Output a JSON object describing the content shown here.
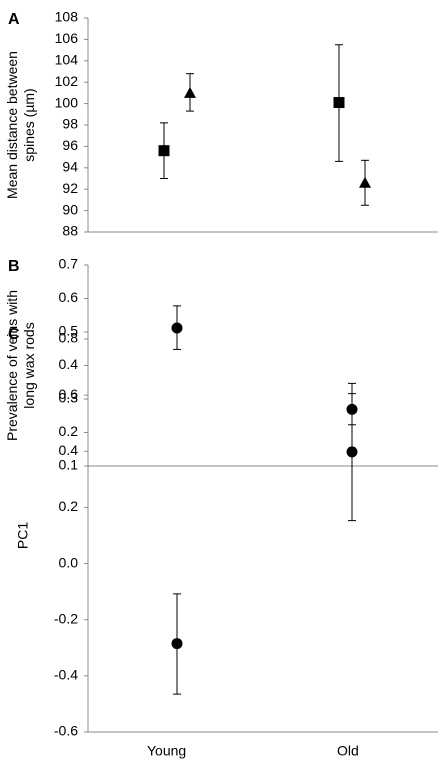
{
  "x_categories": [
    "Young",
    "Old"
  ],
  "chart_data": [
    {
      "panel": "A",
      "type": "scatter",
      "title": "",
      "ylabel_lines": [
        "Mean distance between",
        "spines (µm)"
      ],
      "ylim": [
        88,
        108
      ],
      "y_ticks": [
        "88",
        "90",
        "92",
        "94",
        "96",
        "98",
        "100",
        "102",
        "104",
        "106",
        "108"
      ],
      "grid": false,
      "categories": [
        "Young",
        "Old"
      ],
      "series": [
        {
          "marker": "square",
          "points": [
            {
              "category": "Young",
              "y": 95.6,
              "err_low": 93.0,
              "err_high": 98.2
            },
            {
              "category": "Old",
              "y": 100.1,
              "err_low": 94.6,
              "err_high": 105.5
            }
          ]
        },
        {
          "marker": "triangle",
          "points": [
            {
              "category": "Young",
              "y": 101.0,
              "err_low": 99.3,
              "err_high": 102.8
            },
            {
              "category": "Old",
              "y": 92.6,
              "err_low": 90.5,
              "err_high": 94.7
            }
          ]
        }
      ]
    },
    {
      "panel": "B",
      "type": "scatter",
      "title": "",
      "ylabel_lines": [
        "Prevalence of veins with",
        "long wax rods"
      ],
      "ylim": [
        0.1,
        0.7
      ],
      "y_ticks": [
        "0.1",
        "0.2",
        "0.3",
        "0.4",
        "0.5",
        "0.6",
        "0.7"
      ],
      "grid": false,
      "categories": [
        "Young",
        "Old"
      ],
      "series": [
        {
          "marker": "circle",
          "points": [
            {
              "category": "Young",
              "y": 0.512,
              "err_low": 0.448,
              "err_high": 0.578
            },
            {
              "category": "Old",
              "y": 0.269,
              "err_low": 0.223,
              "err_high": 0.316
            }
          ]
        }
      ]
    },
    {
      "panel": "C",
      "type": "scatter",
      "title": "",
      "ylabel_lines": [
        "PC1"
      ],
      "ylim": [
        -0.6,
        0.8
      ],
      "y_ticks": [
        "-0.6",
        "-0.4",
        "-0.2",
        "0.0",
        "0.2",
        "0.4",
        "0.6",
        "0.8"
      ],
      "grid": false,
      "categories": [
        "Young",
        "Old"
      ],
      "series": [
        {
          "marker": "circle",
          "points": [
            {
              "category": "Young",
              "y": -0.285,
              "err_low": -0.465,
              "err_high": -0.108
            },
            {
              "category": "Old",
              "y": 0.398,
              "err_low": 0.153,
              "err_high": 0.642
            }
          ]
        }
      ]
    }
  ]
}
